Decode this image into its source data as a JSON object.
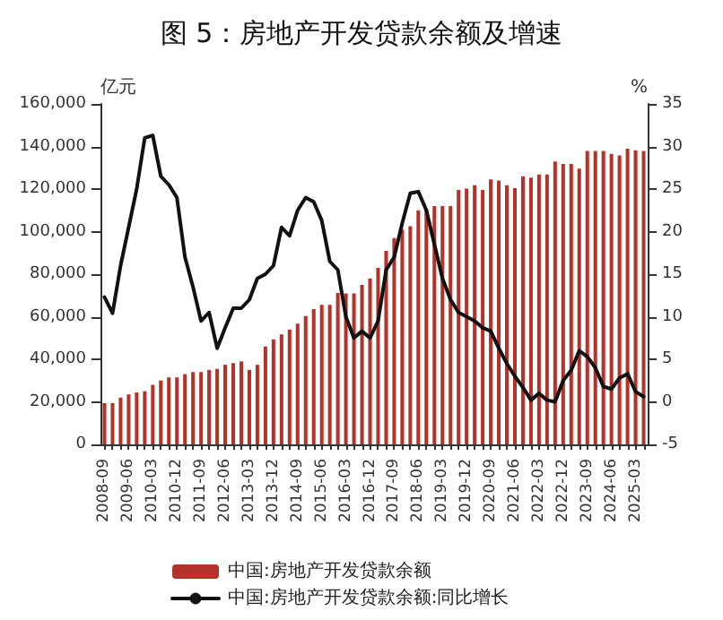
{
  "chart_data": {
    "type": "bar",
    "title": "图 5：房地产开发贷款余额及增速",
    "ylabel": "亿元",
    "y2label": "%",
    "categories": [
      "2008-09",
      null,
      null,
      "2009-06",
      null,
      null,
      "2010-03",
      null,
      null,
      "2010-12",
      null,
      null,
      "2011-09",
      null,
      null,
      "2012-06",
      null,
      null,
      "2013-03",
      null,
      null,
      "2013-12",
      null,
      null,
      "2014-09",
      null,
      null,
      "2015-06",
      null,
      null,
      "2016-03",
      null,
      null,
      "2016-12",
      null,
      null,
      "2017-09",
      null,
      null,
      "2018-06",
      null,
      null,
      "2019-03",
      null,
      null,
      "2019-12",
      null,
      null,
      "2020-09",
      null,
      null,
      "2021-06",
      null,
      null,
      "2022-03",
      null,
      null,
      "2022-12",
      null,
      null,
      "2023-09",
      null,
      null,
      "2024-06",
      null,
      null,
      "2025-03",
      null
    ],
    "series": [
      {
        "name": "中国:房地产开发贷款余额",
        "color": "#b5322a",
        "values": [
          19400,
          19400,
          22000,
          23500,
          24400,
          25000,
          28000,
          30000,
          31500,
          31500,
          33000,
          34000,
          34000,
          35000,
          35500,
          37400,
          38200,
          39000,
          35000,
          37400,
          46000,
          49300,
          51700,
          54000,
          56700,
          60300,
          63600,
          65600,
          65600,
          71200,
          71000,
          71000,
          75000,
          78000,
          83000,
          91000,
          97000,
          101000,
          102500,
          110000,
          110500,
          112000,
          112000,
          112000,
          119600,
          120200,
          121800,
          119600,
          124500,
          124000,
          121800,
          120400,
          126000,
          125400,
          126800,
          126800,
          133000,
          131800,
          131800,
          129600,
          137900,
          137900,
          137900,
          136500,
          135800,
          139000,
          138200,
          137900
        ]
      },
      {
        "name": "中国:房地产开发贷款余额:同比增长",
        "type": "line",
        "axis": "y2",
        "color": "#111111",
        "values": [
          12.3,
          10.4,
          16,
          20.5,
          25,
          31,
          31.3,
          26.5,
          25.5,
          24,
          17,
          13.5,
          9.5,
          10.5,
          6.3,
          8.7,
          11,
          11,
          12,
          14.5,
          15,
          16,
          20.5,
          19.5,
          22.5,
          24,
          23.5,
          21.3,
          16.5,
          15.5,
          10,
          7.5,
          8.3,
          7.5,
          9.5,
          15.5,
          17,
          21,
          24.5,
          24.7,
          22.5,
          18.5,
          14.5,
          12,
          10.5,
          10,
          9.5,
          8.7,
          8.3,
          6.3,
          4.5,
          3,
          1.7,
          0.2,
          1,
          0.2,
          0,
          2.5,
          3.7,
          6,
          5.3,
          4,
          1.8,
          1.5,
          2.8,
          3.3,
          1.2,
          0.6
        ]
      }
    ],
    "ylim": [
      0,
      160000
    ],
    "yticks": [
      {
        "value": 0,
        "label": "0"
      },
      {
        "value": 20000,
        "label": "20,000"
      },
      {
        "value": 40000,
        "label": "40,000"
      },
      {
        "value": 60000,
        "label": "60,000"
      },
      {
        "value": 80000,
        "label": "80,000"
      },
      {
        "value": 100000,
        "label": "100,000"
      },
      {
        "value": 120000,
        "label": "120,000"
      },
      {
        "value": 140000,
        "label": "140,000"
      },
      {
        "value": 160000,
        "label": "160,000"
      }
    ],
    "y2lim": [
      -5,
      35
    ],
    "y2ticks": [
      -5,
      0,
      5,
      10,
      15,
      20,
      25,
      30,
      35
    ],
    "grid": false,
    "legend": "bottom",
    "marker": "none",
    "line_style": "solid"
  }
}
